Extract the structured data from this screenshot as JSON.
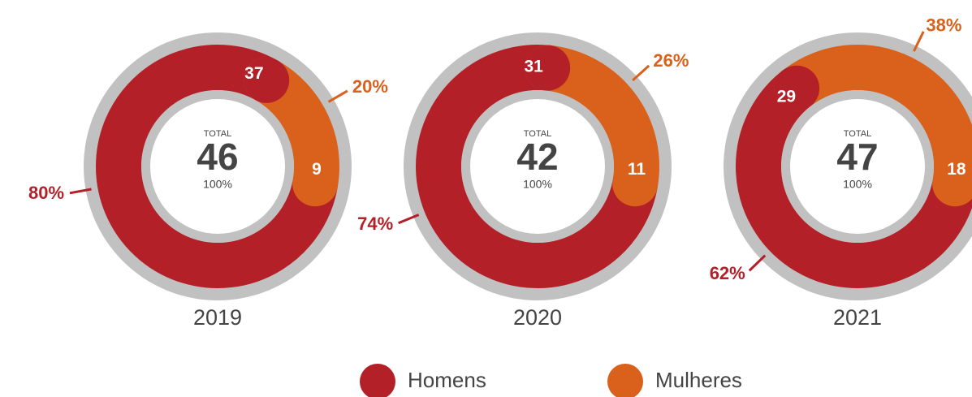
{
  "chart_data": [
    {
      "type": "donut",
      "title": "2019",
      "center_label": "TOTAL",
      "total": 46,
      "total_percent": 100,
      "total_percent_label": "100%",
      "series": [
        {
          "name": "Homens",
          "color": "#b32028",
          "values": [
            37
          ],
          "percent": [
            80
          ],
          "percent_labels": [
            "80%"
          ]
        },
        {
          "name": "Mulheres",
          "color": "#d9611c",
          "values": [
            9
          ],
          "percent": [
            20
          ],
          "percent_labels": [
            "20%"
          ]
        }
      ]
    },
    {
      "type": "donut",
      "title": "2020",
      "center_label": "TOTAL",
      "total": 42,
      "total_percent": 100,
      "total_percent_label": "100%",
      "series": [
        {
          "name": "Homens",
          "color": "#b32028",
          "values": [
            31
          ],
          "percent": [
            74
          ],
          "percent_labels": [
            "74%"
          ]
        },
        {
          "name": "Mulheres",
          "color": "#d9611c",
          "values": [
            11
          ],
          "percent": [
            26
          ],
          "percent_labels": [
            "26%"
          ]
        }
      ]
    },
    {
      "type": "donut",
      "title": "2021",
      "center_label": "TOTAL",
      "total": 47,
      "total_percent": 100,
      "total_percent_label": "100%",
      "series": [
        {
          "name": "Homens",
          "color": "#b32028",
          "values": [
            29
          ],
          "percent": [
            62
          ],
          "percent_labels": [
            "62%"
          ]
        },
        {
          "name": "Mulheres",
          "color": "#d9611c",
          "values": [
            18
          ],
          "percent": [
            38
          ],
          "percent_labels": [
            "38%"
          ]
        }
      ]
    }
  ],
  "legend": [
    {
      "name": "Homens",
      "color": "#b32028"
    },
    {
      "name": "Mulheres",
      "color": "#d9611c"
    }
  ]
}
